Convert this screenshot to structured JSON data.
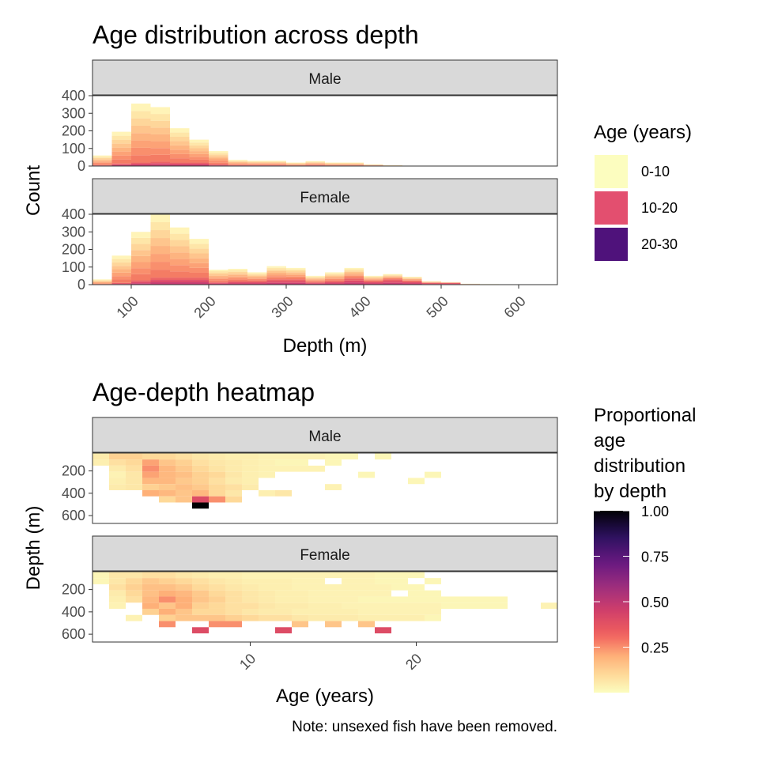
{
  "chart_data": [
    {
      "type": "bar",
      "title": "Age distribution across depth",
      "xlabel": "Depth (m)",
      "ylabel": "Count",
      "xlim": [
        50,
        650
      ],
      "ylim": [
        0,
        400
      ],
      "xticks": [
        100,
        200,
        300,
        400,
        500,
        600
      ],
      "yticks": [
        0,
        100,
        200,
        300,
        400
      ],
      "bin_width": 25,
      "legend": {
        "title": "Age (years)",
        "position": "right",
        "entries": [
          {
            "label": "0-10",
            "color": "#FCFDBF"
          },
          {
            "label": "10-20",
            "color": "#E34F6F"
          },
          {
            "label": "20-30",
            "color": "#4F127B"
          }
        ]
      },
      "panels": [
        {
          "label": "Male",
          "bins": [
            {
              "x": 62.5,
              "total": 60,
              "older": 5
            },
            {
              "x": 87.5,
              "total": 195,
              "older": 15
            },
            {
              "x": 112.5,
              "total": 355,
              "older": 20
            },
            {
              "x": 137.5,
              "total": 335,
              "older": 25
            },
            {
              "x": 162.5,
              "total": 215,
              "older": 20
            },
            {
              "x": 187.5,
              "total": 150,
              "older": 20
            },
            {
              "x": 212.5,
              "total": 85,
              "older": 10
            },
            {
              "x": 237.5,
              "total": 35,
              "older": 5
            },
            {
              "x": 262.5,
              "total": 30,
              "older": 5
            },
            {
              "x": 287.5,
              "total": 30,
              "older": 5
            },
            {
              "x": 312.5,
              "total": 20,
              "older": 3
            },
            {
              "x": 337.5,
              "total": 28,
              "older": 5
            },
            {
              "x": 362.5,
              "total": 20,
              "older": 3
            },
            {
              "x": 387.5,
              "total": 20,
              "older": 3
            },
            {
              "x": 412.5,
              "total": 10,
              "older": 2
            },
            {
              "x": 437.5,
              "total": 5,
              "older": 0
            }
          ]
        },
        {
          "label": "Female",
          "bins": [
            {
              "x": 62.5,
              "total": 30,
              "older": 0
            },
            {
              "x": 87.5,
              "total": 165,
              "older": 10
            },
            {
              "x": 112.5,
              "total": 300,
              "older": 25
            },
            {
              "x": 137.5,
              "total": 400,
              "older": 40
            },
            {
              "x": 162.5,
              "total": 325,
              "older": 40
            },
            {
              "x": 187.5,
              "total": 260,
              "older": 40
            },
            {
              "x": 212.5,
              "total": 85,
              "older": 15
            },
            {
              "x": 237.5,
              "total": 90,
              "older": 20
            },
            {
              "x": 262.5,
              "total": 70,
              "older": 20
            },
            {
              "x": 287.5,
              "total": 105,
              "older": 30
            },
            {
              "x": 312.5,
              "total": 95,
              "older": 30
            },
            {
              "x": 337.5,
              "total": 50,
              "older": 15
            },
            {
              "x": 362.5,
              "total": 70,
              "older": 20
            },
            {
              "x": 387.5,
              "total": 95,
              "older": 35
            },
            {
              "x": 412.5,
              "total": 50,
              "older": 20
            },
            {
              "x": 437.5,
              "total": 60,
              "older": 30
            },
            {
              "x": 462.5,
              "total": 45,
              "older": 20
            },
            {
              "x": 487.5,
              "total": 20,
              "older": 10
            },
            {
              "x": 512.5,
              "total": 15,
              "older": 10
            },
            {
              "x": 537.5,
              "total": 5,
              "older": 2
            },
            {
              "x": 562.5,
              "total": 3,
              "older": 0
            },
            {
              "x": 587.5,
              "total": 2,
              "older": 0
            },
            {
              "x": 612.5,
              "total": 2,
              "older": 0
            }
          ]
        }
      ]
    },
    {
      "type": "heatmap",
      "title": "Age-depth heatmap",
      "xlabel": "Age (years)",
      "ylabel": "Depth (m)",
      "xlim": [
        0.5,
        28.5
      ],
      "ylim": [
        670,
        40
      ],
      "xticks": [
        10,
        20
      ],
      "yticks": [
        200,
        400,
        600
      ],
      "legend": {
        "title": "Proportional age distribution by depth",
        "title_lines": [
          "Proportional",
          "age",
          "distribution",
          "by depth"
        ],
        "position": "right",
        "ticks": [
          1.0,
          0.75,
          0.5,
          0.25
        ],
        "tick_labels": [
          "1.00",
          "0.75",
          "0.50",
          "0.25"
        ],
        "range": [
          0.0,
          1.0
        ]
      },
      "cell_height_m": 55,
      "panels": [
        {
          "label": "Male",
          "rows": [
            {
              "depth": 70,
              "values": [
                0.05,
                0.12,
                0.12,
                0.1,
                0.1,
                0.08,
                0.06,
                0.05,
                0.04,
                0.04,
                0.03,
                0.03,
                0.03,
                0.03,
                0.02,
                0.02,
                0.0,
                0.02,
                0.0,
                0.0,
                0.0,
                0.0,
                0.0,
                0.0,
                0.0,
                0.0,
                0.0,
                0.0
              ]
            },
            {
              "depth": 125,
              "values": [
                0.04,
                0.08,
                0.1,
                0.22,
                0.15,
                0.12,
                0.08,
                0.06,
                0.05,
                0.04,
                0.03,
                0.02,
                0.02,
                0.0,
                0.02,
                0.0,
                0.0,
                0.0,
                0.0,
                0.0,
                0.0,
                0.0,
                0.0,
                0.0,
                0.0,
                0.0,
                0.0,
                0.0
              ]
            },
            {
              "depth": 180,
              "values": [
                0.0,
                0.05,
                0.08,
                0.25,
                0.18,
                0.14,
                0.1,
                0.07,
                0.05,
                0.04,
                0.03,
                0.03,
                0.03,
                0.03,
                0.0,
                0.0,
                0.0,
                0.0,
                0.0,
                0.0,
                0.0,
                0.0,
                0.0,
                0.0,
                0.0,
                0.0,
                0.0,
                0.0
              ]
            },
            {
              "depth": 235,
              "values": [
                0.0,
                0.03,
                0.06,
                0.22,
                0.18,
                0.16,
                0.12,
                0.1,
                0.06,
                0.04,
                0.03,
                0.0,
                0.0,
                0.0,
                0.0,
                0.0,
                0.02,
                0.0,
                0.0,
                0.0,
                0.02,
                0.0,
                0.0,
                0.0,
                0.0,
                0.0,
                0.0,
                0.0
              ]
            },
            {
              "depth": 290,
              "values": [
                0.0,
                0.04,
                0.06,
                0.18,
                0.18,
                0.14,
                0.12,
                0.08,
                0.05,
                0.04,
                0.0,
                0.0,
                0.0,
                0.0,
                0.0,
                0.0,
                0.0,
                0.0,
                0.0,
                0.02,
                0.0,
                0.0,
                0.0,
                0.0,
                0.0,
                0.0,
                0.0,
                0.0
              ]
            },
            {
              "depth": 345,
              "values": [
                0.0,
                0.05,
                0.06,
                0.12,
                0.14,
                0.16,
                0.14,
                0.1,
                0.08,
                0.05,
                0.0,
                0.0,
                0.0,
                0.0,
                0.03,
                0.0,
                0.0,
                0.0,
                0.0,
                0.0,
                0.0,
                0.0,
                0.0,
                0.0,
                0.0,
                0.0,
                0.0,
                0.0
              ]
            },
            {
              "depth": 400,
              "values": [
                0.0,
                0.0,
                0.0,
                0.2,
                0.18,
                0.15,
                0.18,
                0.1,
                0.06,
                0.0,
                0.04,
                0.06,
                0.0,
                0.0,
                0.0,
                0.0,
                0.0,
                0.0,
                0.0,
                0.0,
                0.0,
                0.0,
                0.0,
                0.0,
                0.0,
                0.0,
                0.0,
                0.0
              ]
            },
            {
              "depth": 455,
              "values": [
                0.0,
                0.0,
                0.0,
                0.0,
                0.1,
                0.15,
                0.4,
                0.25,
                0.1,
                0.0,
                0.0,
                0.0,
                0.0,
                0.0,
                0.0,
                0.0,
                0.0,
                0.0,
                0.0,
                0.0,
                0.0,
                0.0,
                0.0,
                0.0,
                0.0,
                0.0,
                0.0,
                0.0
              ]
            },
            {
              "depth": 510,
              "values": [
                0.0,
                0.0,
                0.0,
                0.0,
                0.0,
                0.0,
                1.0,
                0.0,
                0.0,
                0.0,
                0.0,
                0.0,
                0.0,
                0.0,
                0.0,
                0.0,
                0.0,
                0.0,
                0.0,
                0.0,
                0.0,
                0.0,
                0.0,
                0.0,
                0.0,
                0.0,
                0.0,
                0.0
              ]
            }
          ]
        },
        {
          "label": "Female",
          "rows": [
            {
              "depth": 70,
              "values": [
                0.02,
                0.06,
                0.06,
                0.08,
                0.08,
                0.06,
                0.05,
                0.04,
                0.04,
                0.03,
                0.03,
                0.03,
                0.03,
                0.03,
                0.03,
                0.03,
                0.03,
                0.02,
                0.02,
                0.02,
                0.0,
                0.0,
                0.0,
                0.0,
                0.0,
                0.0,
                0.0,
                0.0
              ]
            },
            {
              "depth": 125,
              "values": [
                0.02,
                0.06,
                0.1,
                0.14,
                0.12,
                0.1,
                0.08,
                0.06,
                0.05,
                0.04,
                0.04,
                0.04,
                0.03,
                0.03,
                0.0,
                0.03,
                0.03,
                0.02,
                0.02,
                0.0,
                0.02,
                0.0,
                0.0,
                0.0,
                0.0,
                0.0,
                0.0,
                0.0
              ]
            },
            {
              "depth": 180,
              "values": [
                0.0,
                0.08,
                0.12,
                0.16,
                0.16,
                0.14,
                0.1,
                0.08,
                0.06,
                0.05,
                0.04,
                0.04,
                0.03,
                0.03,
                0.03,
                0.03,
                0.03,
                0.03,
                0.02,
                0.02,
                0.0,
                0.0,
                0.0,
                0.0,
                0.0,
                0.0,
                0.0,
                0.0
              ]
            },
            {
              "depth": 235,
              "values": [
                0.0,
                0.05,
                0.1,
                0.16,
                0.2,
                0.18,
                0.14,
                0.1,
                0.08,
                0.06,
                0.05,
                0.04,
                0.04,
                0.03,
                0.03,
                0.03,
                0.03,
                0.03,
                0.0,
                0.02,
                0.02,
                0.0,
                0.0,
                0.0,
                0.0,
                0.0,
                0.0,
                0.0
              ]
            },
            {
              "depth": 290,
              "values": [
                0.0,
                0.04,
                0.08,
                0.18,
                0.25,
                0.2,
                0.15,
                0.12,
                0.08,
                0.06,
                0.05,
                0.04,
                0.04,
                0.03,
                0.03,
                0.03,
                0.02,
                0.02,
                0.02,
                0.02,
                0.02,
                0.02,
                0.02,
                0.02,
                0.02,
                0.0,
                0.0,
                0.0
              ]
            },
            {
              "depth": 345,
              "values": [
                0.0,
                0.03,
                0.0,
                0.2,
                0.15,
                0.2,
                0.12,
                0.1,
                0.08,
                0.08,
                0.06,
                0.05,
                0.05,
                0.04,
                0.04,
                0.03,
                0.03,
                0.03,
                0.03,
                0.03,
                0.03,
                0.02,
                0.02,
                0.02,
                0.02,
                0.0,
                0.0,
                0.03
              ]
            },
            {
              "depth": 400,
              "values": [
                0.0,
                0.0,
                0.0,
                0.12,
                0.2,
                0.15,
                0.1,
                0.1,
                0.08,
                0.06,
                0.05,
                0.05,
                0.04,
                0.04,
                0.04,
                0.04,
                0.03,
                0.03,
                0.03,
                0.03,
                0.03,
                0.0,
                0.0,
                0.0,
                0.0,
                0.0,
                0.0,
                0.0
              ]
            },
            {
              "depth": 455,
              "values": [
                0.0,
                0.0,
                0.03,
                0.0,
                0.12,
                0.15,
                0.15,
                0.15,
                0.12,
                0.1,
                0.08,
                0.08,
                0.06,
                0.05,
                0.05,
                0.05,
                0.04,
                0.04,
                0.04,
                0.04,
                0.02,
                0.0,
                0.0,
                0.0,
                0.0,
                0.0,
                0.0,
                0.0
              ]
            },
            {
              "depth": 510,
              "values": [
                0.0,
                0.0,
                0.0,
                0.0,
                0.25,
                0.0,
                0.0,
                0.25,
                0.25,
                0.0,
                0.0,
                0.0,
                0.15,
                0.0,
                0.15,
                0.0,
                0.15,
                0.0,
                0.0,
                0.0,
                0.0,
                0.0,
                0.0,
                0.0,
                0.0,
                0.0,
                0.0,
                0.0
              ]
            },
            {
              "depth": 565,
              "values": [
                0.0,
                0.0,
                0.0,
                0.0,
                0.0,
                0.0,
                0.4,
                0.0,
                0.0,
                0.0,
                0.0,
                0.4,
                0.0,
                0.0,
                0.0,
                0.0,
                0.0,
                0.4,
                0.0,
                0.0,
                0.0,
                0.0,
                0.0,
                0.0,
                0.0,
                0.0,
                0.0,
                0.0
              ]
            }
          ]
        }
      ]
    }
  ],
  "footnote": "Note: unsexed fish have been removed."
}
